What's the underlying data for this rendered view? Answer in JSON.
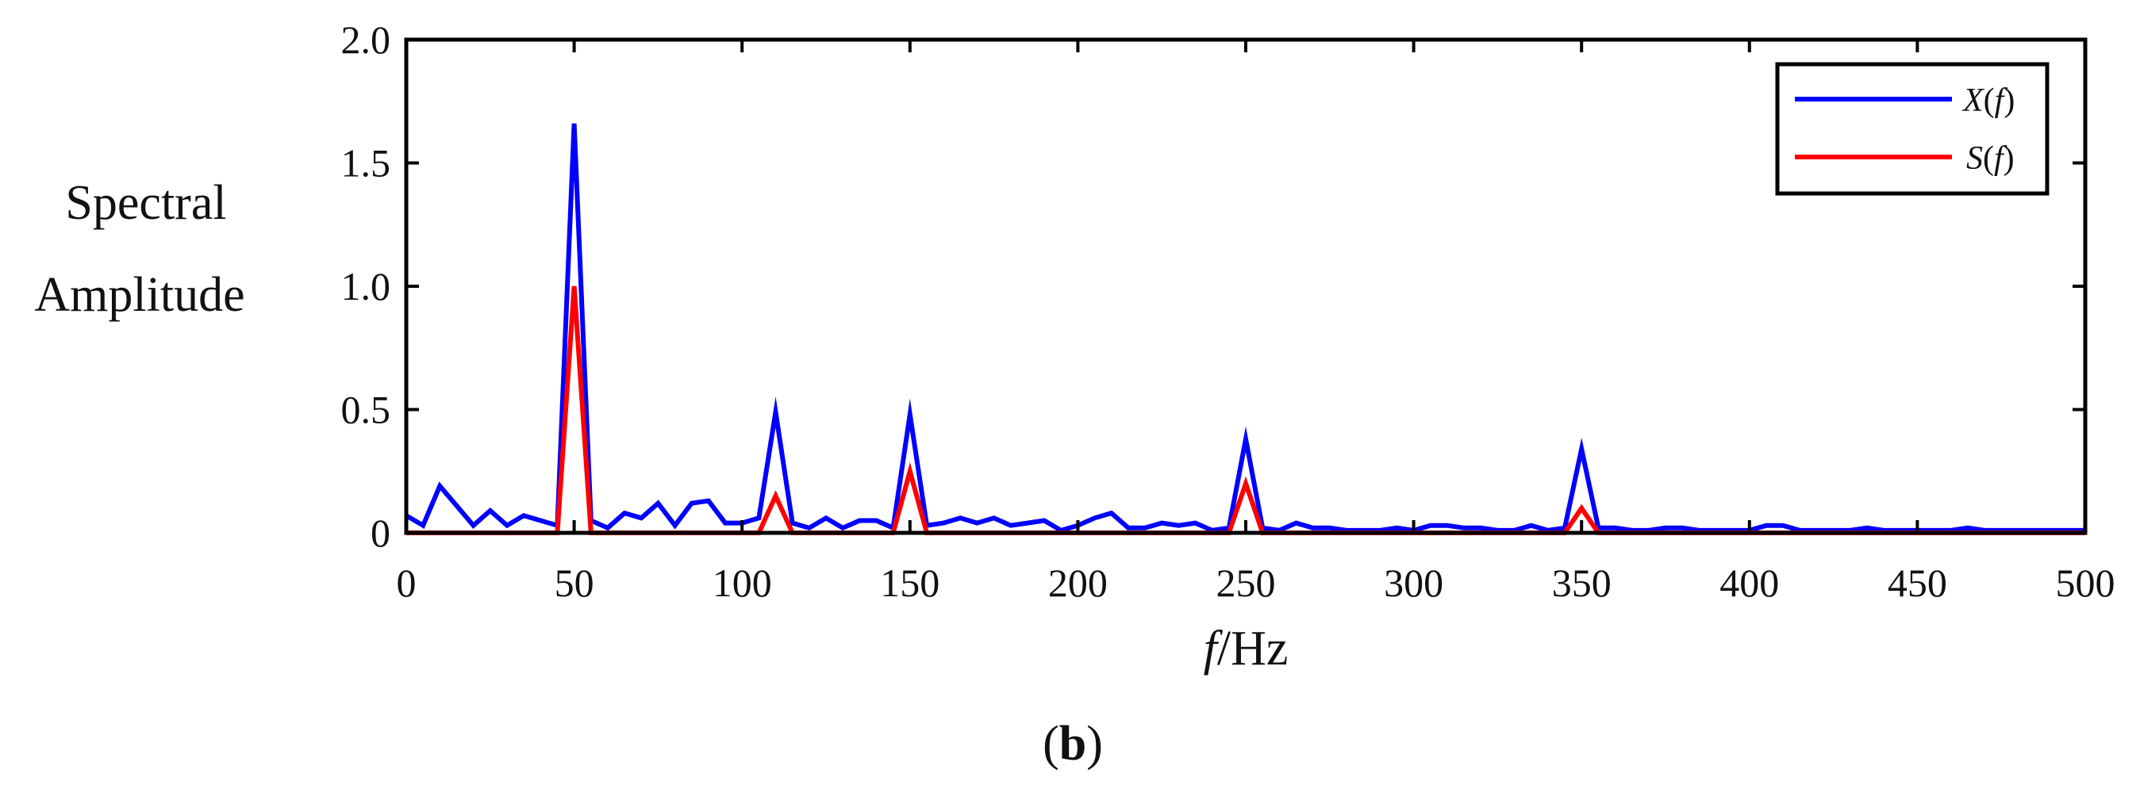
{
  "chart_data": {
    "type": "line",
    "xlabel_italic": "f",
    "xlabel_rest": "/Hz",
    "ylabel_line1": "Spectral",
    "ylabel_line2": "Amplitude",
    "panel_label_open": "(",
    "panel_label_bold": "b",
    "panel_label_close": ")",
    "xlim": [
      0,
      500
    ],
    "ylim": [
      0,
      2.0
    ],
    "xticks": [
      0,
      50,
      100,
      150,
      200,
      250,
      300,
      350,
      400,
      450,
      500
    ],
    "xtick_labels": [
      "0",
      "50",
      "100",
      "150",
      "200",
      "250",
      "300",
      "350",
      "400",
      "450",
      "500"
    ],
    "yticks": [
      0,
      0.5,
      1.0,
      1.5,
      2.0
    ],
    "ytick_labels": [
      "0",
      "0.5",
      "1.0",
      "1.5",
      "2.0"
    ],
    "grid": false,
    "legend_position": "top-right",
    "series": [
      {
        "name": "X(f)",
        "name_letter": "X",
        "name_open": "(",
        "name_arg": "f",
        "name_close": ")",
        "color": "#0000ff",
        "x": [
          0,
          5,
          10,
          15,
          20,
          25,
          30,
          35,
          40,
          45,
          50,
          55,
          60,
          65,
          70,
          75,
          80,
          85,
          90,
          95,
          100,
          105,
          110,
          115,
          120,
          125,
          130,
          135,
          140,
          145,
          150,
          155,
          160,
          165,
          170,
          175,
          180,
          185,
          190,
          195,
          200,
          205,
          210,
          215,
          220,
          225,
          230,
          235,
          240,
          245,
          250,
          255,
          260,
          265,
          270,
          275,
          280,
          285,
          290,
          295,
          300,
          305,
          310,
          315,
          320,
          325,
          330,
          335,
          340,
          345,
          350,
          355,
          360,
          365,
          370,
          375,
          380,
          385,
          390,
          395,
          400,
          405,
          410,
          415,
          420,
          425,
          430,
          435,
          440,
          445,
          450,
          455,
          460,
          465,
          470,
          475,
          480,
          485,
          490,
          495,
          500
        ],
        "y": [
          0.07,
          0.03,
          0.19,
          0.11,
          0.03,
          0.09,
          0.03,
          0.07,
          0.05,
          0.03,
          1.66,
          0.05,
          0.02,
          0.08,
          0.06,
          0.12,
          0.03,
          0.12,
          0.13,
          0.04,
          0.04,
          0.06,
          0.49,
          0.04,
          0.02,
          0.06,
          0.02,
          0.05,
          0.05,
          0.02,
          0.48,
          0.03,
          0.04,
          0.06,
          0.04,
          0.06,
          0.03,
          0.04,
          0.05,
          0.01,
          0.03,
          0.06,
          0.08,
          0.02,
          0.02,
          0.04,
          0.03,
          0.04,
          0.01,
          0.02,
          0.38,
          0.02,
          0.01,
          0.04,
          0.02,
          0.02,
          0.01,
          0.01,
          0.01,
          0.02,
          0.01,
          0.03,
          0.03,
          0.02,
          0.02,
          0.01,
          0.01,
          0.03,
          0.01,
          0.02,
          0.34,
          0.02,
          0.02,
          0.01,
          0.01,
          0.02,
          0.02,
          0.01,
          0.01,
          0.01,
          0.01,
          0.03,
          0.03,
          0.01,
          0.01,
          0.01,
          0.01,
          0.02,
          0.01,
          0.01,
          0.01,
          0.01,
          0.01,
          0.02,
          0.01,
          0.01,
          0.01,
          0.01,
          0.01,
          0.01,
          0.01
        ]
      },
      {
        "name": "S(f)",
        "name_letter": "S",
        "name_open": "(",
        "name_arg": "f",
        "name_close": ")",
        "color": "#ff0000",
        "x": [
          0,
          45,
          50,
          55,
          105,
          110,
          115,
          145,
          150,
          155,
          245,
          250,
          255,
          345,
          350,
          355,
          500
        ],
        "y": [
          0,
          0,
          1.0,
          0,
          0,
          0.15,
          0,
          0,
          0.25,
          0,
          0,
          0.2,
          0,
          0,
          0.1,
          0,
          0
        ]
      }
    ]
  }
}
